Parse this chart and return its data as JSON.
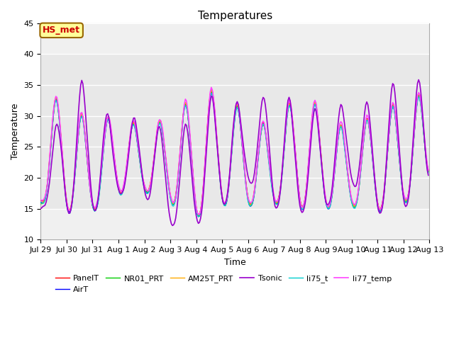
{
  "title": "Temperatures",
  "xlabel": "Time",
  "ylabel": "Temperature",
  "ylim": [
    10,
    45
  ],
  "annotation_text": "HS_met",
  "annotation_color": "#cc0000",
  "annotation_bg": "#ffff99",
  "annotation_border": "#996600",
  "bg_band_low": 15,
  "bg_band_high": 40,
  "series_order": [
    "PanelT",
    "AirT",
    "NR01_PRT",
    "AM25T_PRT",
    "Tsonic",
    "li75_t",
    "li77_temp"
  ],
  "series": {
    "PanelT": {
      "color": "#ff0000",
      "lw": 1.0
    },
    "AirT": {
      "color": "#0000ff",
      "lw": 1.0
    },
    "NR01_PRT": {
      "color": "#00cc00",
      "lw": 1.0
    },
    "AM25T_PRT": {
      "color": "#ffaa00",
      "lw": 1.0
    },
    "Tsonic": {
      "color": "#9900cc",
      "lw": 1.2
    },
    "li75_t": {
      "color": "#00cccc",
      "lw": 1.0
    },
    "li77_temp": {
      "color": "#ff44ff",
      "lw": 1.2
    }
  },
  "xtick_labels": [
    "Jul 29",
    "Jul 30",
    "Jul 31",
    "Aug 1",
    "Aug 2",
    "Aug 3",
    "Aug 4",
    "Aug 5",
    "Aug 6",
    "Aug 7",
    "Aug 8",
    "Aug 9",
    "Aug 10",
    "Aug 11",
    "Aug 12",
    "Aug 13"
  ],
  "xtick_positions": [
    0,
    24,
    48,
    72,
    96,
    120,
    144,
    168,
    192,
    216,
    240,
    264,
    288,
    312,
    336,
    360
  ],
  "figsize": [
    6.4,
    4.8
  ],
  "dpi": 100,
  "bg_color": "#e8e8e8"
}
